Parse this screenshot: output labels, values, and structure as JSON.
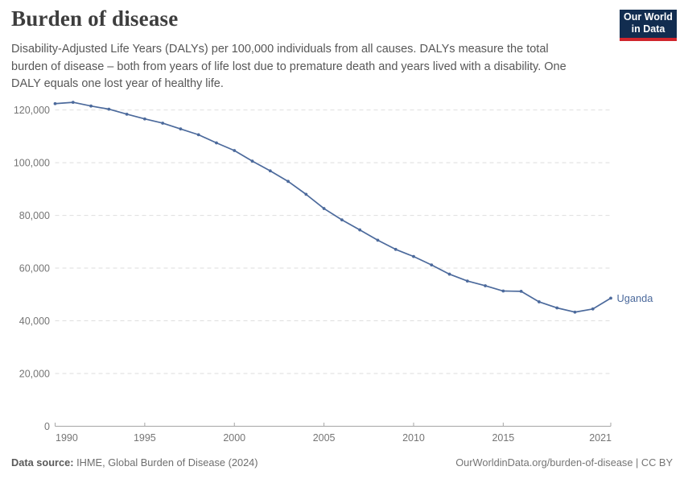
{
  "header": {
    "title": "Burden of disease",
    "subtitle_lines": [
      "Disability-Adjusted Life Years (DALYs) per 100,000 individuals from all causes. DALYs measure the total",
      "burden of disease – both from years of life lost due to premature death and years lived with a disability. One",
      "DALY equals one lost year of healthy life."
    ],
    "logo": {
      "line1": "Our World",
      "line2": "in Data"
    }
  },
  "chart_data": {
    "type": "line",
    "title": "Burden of disease",
    "xlabel": "",
    "ylabel": "",
    "xlim": [
      1990,
      2021
    ],
    "ylim": [
      0,
      120000
    ],
    "x_ticks": [
      1990,
      1995,
      2000,
      2005,
      2010,
      2015,
      2021
    ],
    "y_ticks": [
      0,
      20000,
      40000,
      60000,
      80000,
      100000,
      120000
    ],
    "y_tick_labels": [
      "0",
      "20,000",
      "40,000",
      "60,000",
      "80,000",
      "100,000",
      "120,000"
    ],
    "grid": "horizontal-dashed",
    "legend_position": "end-of-line",
    "series": [
      {
        "name": "Uganda",
        "color": "#4c6a9c",
        "x": [
          1990,
          1991,
          1992,
          1993,
          1994,
          1995,
          1996,
          1997,
          1998,
          1999,
          2000,
          2001,
          2002,
          2003,
          2004,
          2005,
          2006,
          2007,
          2008,
          2009,
          2010,
          2011,
          2012,
          2013,
          2014,
          2015,
          2016,
          2017,
          2018,
          2019,
          2020,
          2021
        ],
        "values": [
          122400,
          122900,
          121500,
          120300,
          118400,
          116600,
          115000,
          112800,
          110600,
          107500,
          104600,
          100600,
          96900,
          92900,
          88000,
          82600,
          78300,
          74500,
          70600,
          67100,
          64400,
          61200,
          57700,
          55100,
          53300,
          51300,
          51200,
          47200,
          44900,
          43300,
          44500,
          48600
        ]
      }
    ]
  },
  "footer": {
    "source_label": "Data source:",
    "source_value": " IHME, Global Burden of Disease (2024)",
    "link": "OurWorldinData.org/burden-of-disease | CC BY"
  },
  "colors": {
    "line": "#4c6a9c",
    "grid": "#dedede",
    "axis": "#a6a6a6",
    "tick_text": "#757575",
    "title_text": "#3d3d3d",
    "subtitle_text": "#575757",
    "footer_text": "#6e6e6e",
    "logo_navy": "#122d50",
    "logo_red": "#d0252c",
    "background": "#ffffff"
  }
}
